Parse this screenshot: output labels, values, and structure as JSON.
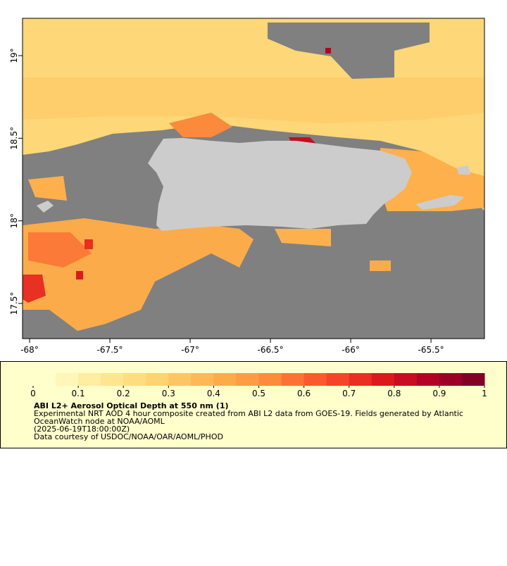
{
  "map": {
    "xlim": [
      -68.044,
      -65.167
    ],
    "ylim": [
      17.287,
      19.226
    ],
    "xticks": [
      {
        "value": -68,
        "label": "-68°"
      },
      {
        "value": -67.5,
        "label": "-67.5°"
      },
      {
        "value": -67,
        "label": "-67°"
      },
      {
        "value": -66.5,
        "label": "-66.5°"
      },
      {
        "value": -66,
        "label": "-66°"
      },
      {
        "value": -65.5,
        "label": "-65.5°"
      }
    ],
    "yticks": [
      {
        "value": 17.5,
        "label": "17.5°"
      },
      {
        "value": 18,
        "label": "18°"
      },
      {
        "value": 18.5,
        "label": "18.5°"
      },
      {
        "value": 19,
        "label": "19°"
      }
    ],
    "colorbar": {
      "lim": [
        0,
        1
      ],
      "ticks": [
        0,
        0.1,
        0.2,
        0.3,
        0.4,
        0.5,
        0.6,
        0.7,
        0.8,
        0.9,
        1
      ],
      "colors": [
        "#ffffcc",
        "#fff6b8",
        "#ffeda0",
        "#fee590",
        "#fedd81",
        "#fed470",
        "#fec662",
        "#feb855",
        "#fdaa49",
        "#fd9c42",
        "#fd8b3c",
        "#fc7235",
        "#fc5a2e",
        "#f54428",
        "#ea2e21",
        "#dc1a1e",
        "#ca0c22",
        "#b50026",
        "#9c0026",
        "#800026"
      ]
    },
    "title": "ABI L2+ Aerosol Optical Depth at 550 nm (1)",
    "lines": [
      "Experimental NRT AOD 4 hour composite created from ABI L2 data from GOES-19. Fields generated by Atlantic",
      "OceanWatch node at NOAA/AOML",
      "(2025-06-19T18:00:00Z)",
      "Data courtesy of USDOC/NOAA/OAR/AOML/PHOD"
    ]
  }
}
